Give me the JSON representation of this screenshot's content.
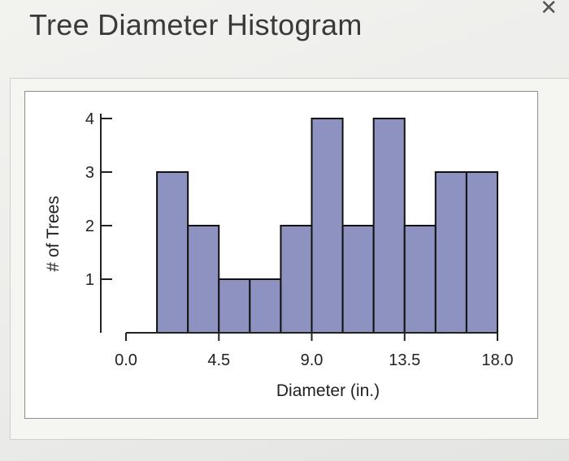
{
  "page": {
    "title": "Tree Diameter Histogram"
  },
  "chart_data": {
    "type": "bar",
    "title": "",
    "xlabel": "Diameter (in.)",
    "ylabel": "# of Trees",
    "bin_edges": [
      1.5,
      3.0,
      4.5,
      6.0,
      7.5,
      9.0,
      10.5,
      12.0,
      13.5,
      15.0,
      16.5,
      18.0
    ],
    "values": [
      3,
      2,
      1,
      1,
      2,
      4,
      2,
      4,
      2,
      3,
      3
    ],
    "x_ticks": [
      "0.0",
      "4.5",
      "9.0",
      "13.5",
      "18.0"
    ],
    "y_ticks": [
      "1",
      "2",
      "3",
      "4"
    ],
    "xlim": [
      0.0,
      18.0
    ],
    "ylim": [
      0,
      4
    ],
    "bar_color": "#8e92c1",
    "edge_color": "#111111",
    "grid": false,
    "legend": "none"
  }
}
